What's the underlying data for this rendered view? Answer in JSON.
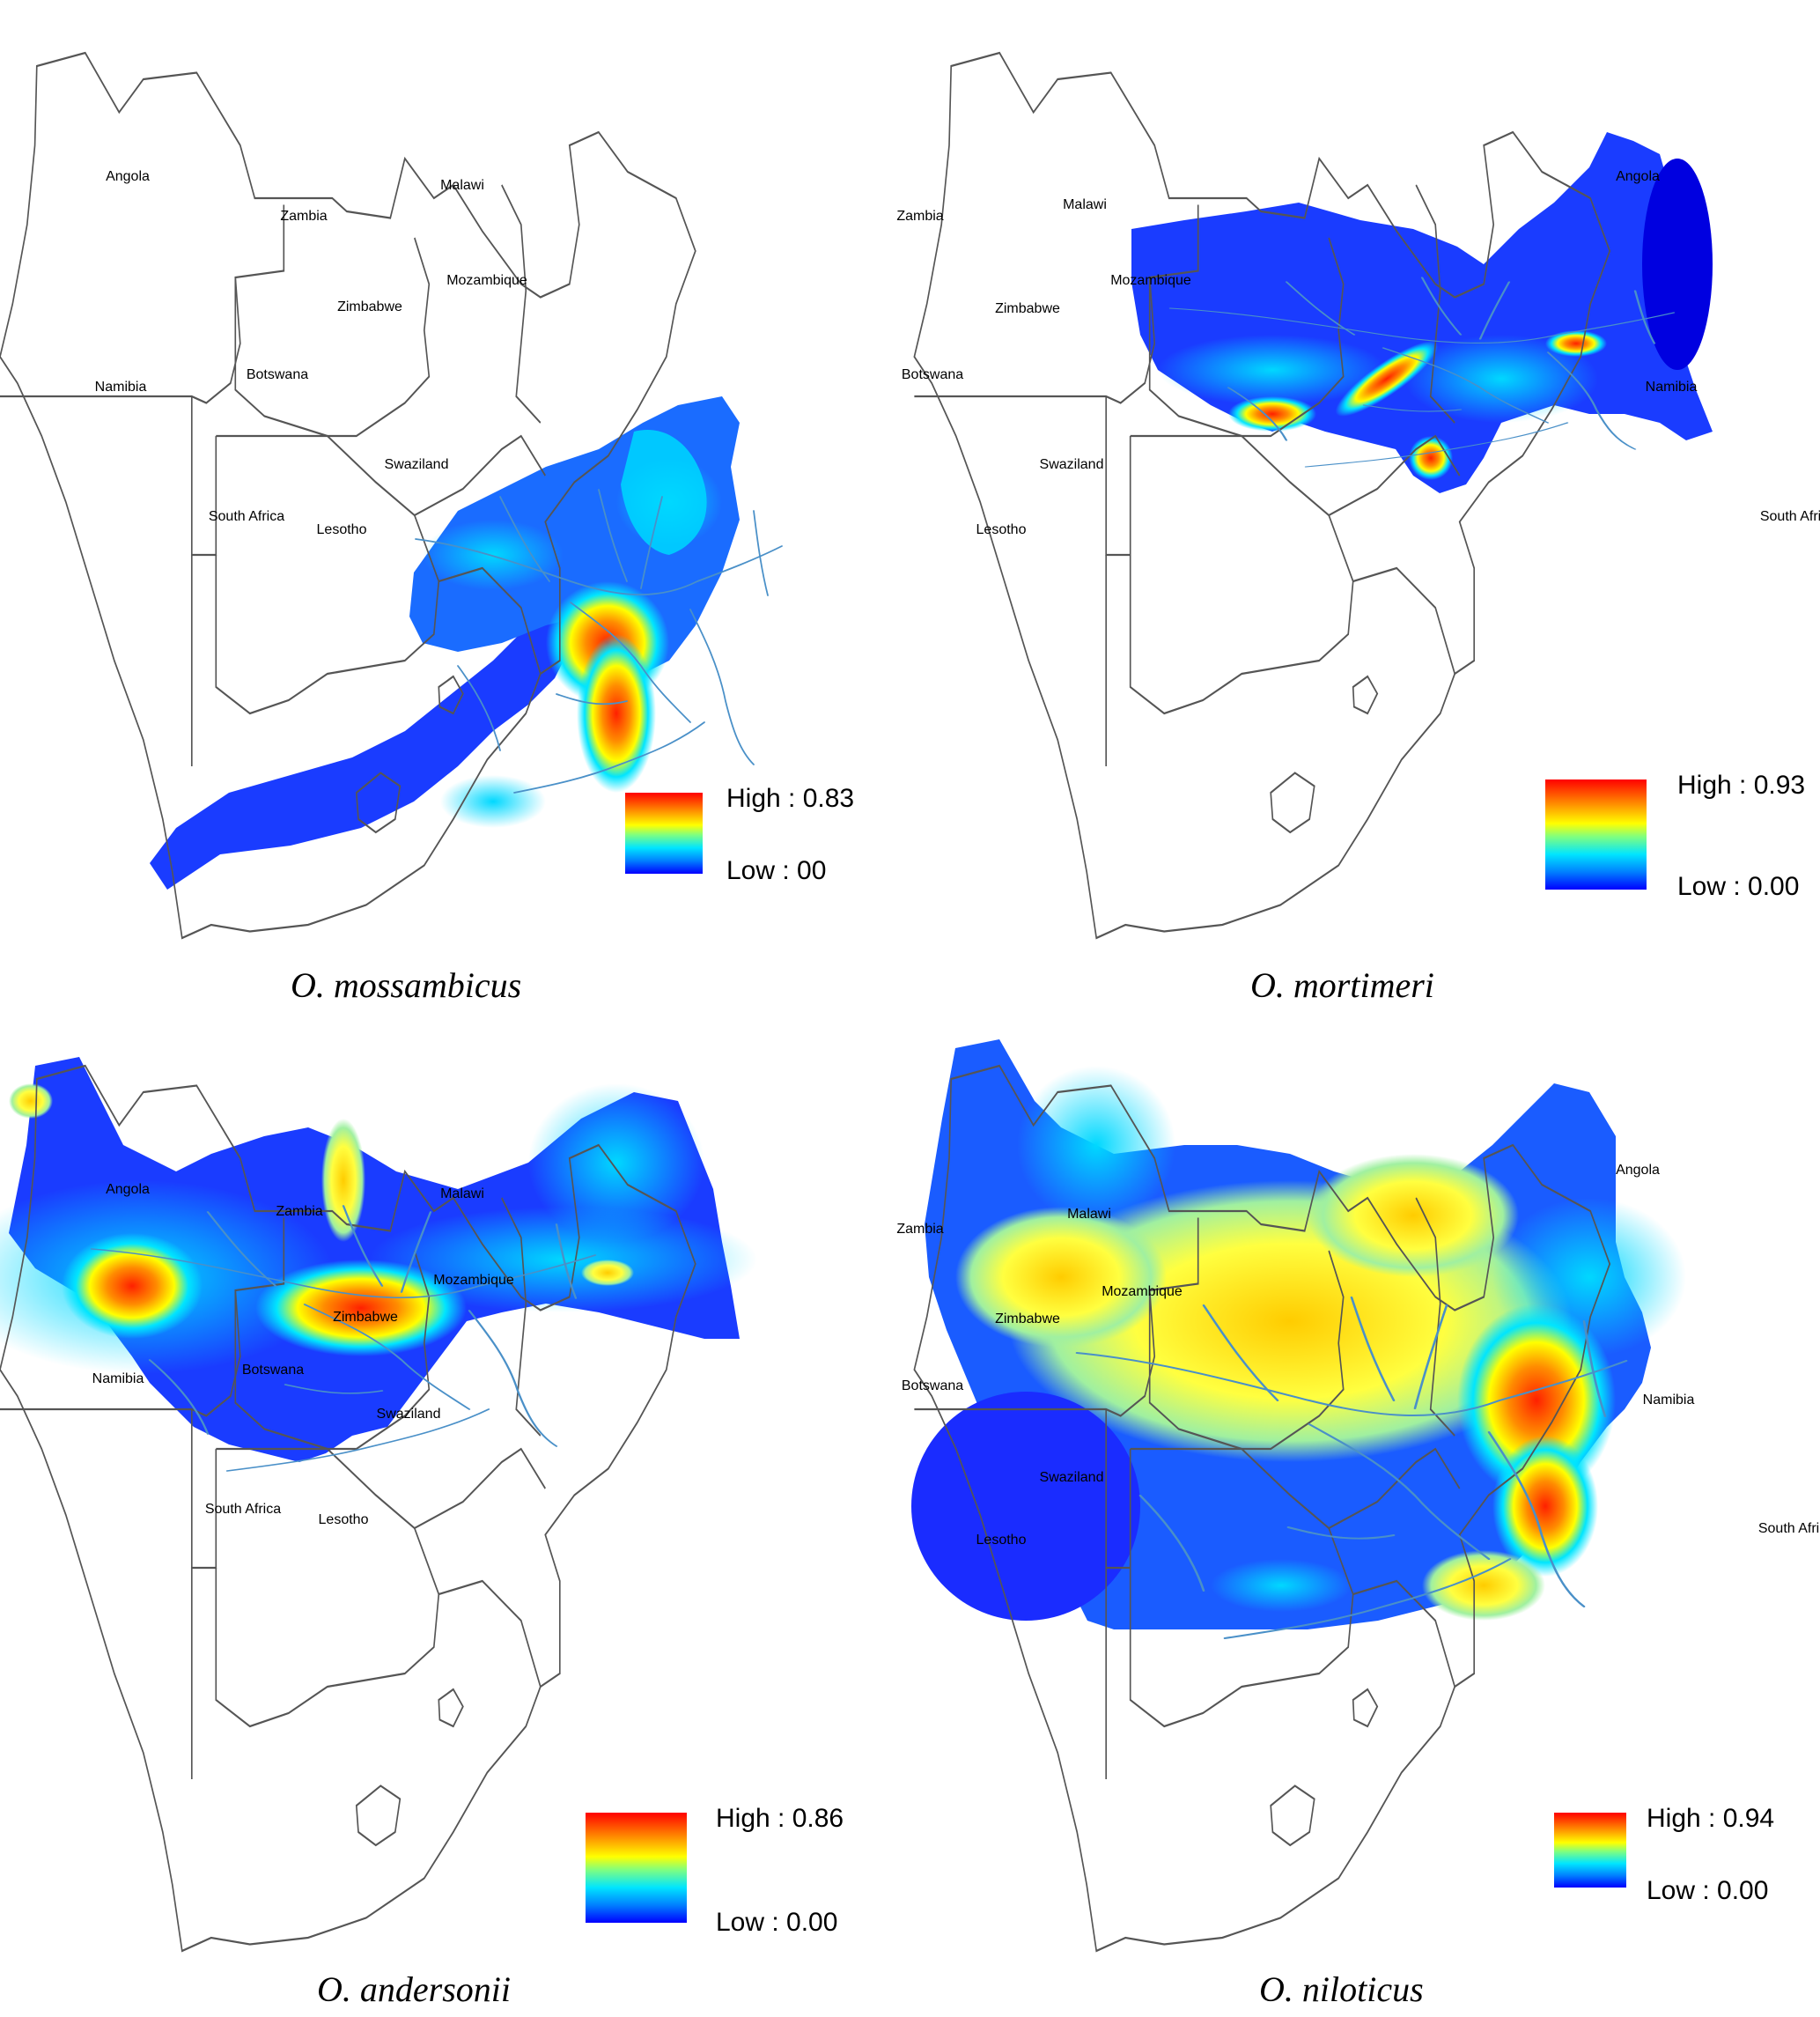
{
  "panels": [
    {
      "species": "O. mossambicus",
      "legend": {
        "high": "High : 0.83",
        "low": "Low : 00"
      },
      "labels": {
        "angola": "Angola",
        "zambia": "Zambia",
        "malawi": "Malawi",
        "mozambique": "Mozambique",
        "zimbabwe": "Zimbabwe",
        "botswana": "Botswana",
        "namibia": "Namibia",
        "swaziland": "Swaziland",
        "south_africa": "South Africa",
        "lesotho": "Lesotho"
      }
    },
    {
      "species": "O. mortimeri",
      "legend": {
        "high": "High : 0.93",
        "low": "Low : 0.00"
      },
      "labels": {
        "angola": "Angola",
        "zambia": "Zambia",
        "malawi": "Malawi",
        "mozambique": "Mozambique",
        "zimbabwe": "Zimbabwe",
        "botswana": "Botswana",
        "namibia": "Namibia",
        "swaziland": "Swaziland",
        "south_africa": "South Africa",
        "lesotho": "Lesotho"
      }
    },
    {
      "species": "O. andersonii",
      "legend": {
        "high": "High : 0.86",
        "low": "Low : 0.00"
      },
      "labels": {
        "angola": "Angola",
        "zambia": "Zambia",
        "malawi": "Malawi",
        "mozambique": "Mozambique",
        "zimbabwe": "Zimbabwe",
        "botswana": "Botswana",
        "namibia": "Namibia",
        "swaziland": "Swaziland",
        "south_africa": "South Africa",
        "lesotho": "Lesotho"
      }
    },
    {
      "species": "O. niloticus",
      "legend": {
        "high": "High : 0.94",
        "low": "Low : 0.00"
      },
      "labels": {
        "angola": "Angola",
        "zambia": "Zambia",
        "malawi": "Malawi",
        "mozambique": "Mozambique",
        "zimbabwe": "Zimbabwe",
        "botswana": "Botswana",
        "namibia": "Namibia",
        "swaziland": "Swaziland",
        "south_africa": "South Africa",
        "lesotho": "Lesotho"
      }
    }
  ],
  "colors": {
    "high": "#ff0000",
    "mid": "#ffff00",
    "low": "#0000ff",
    "river": "#4a90c8",
    "border": "#555555"
  }
}
